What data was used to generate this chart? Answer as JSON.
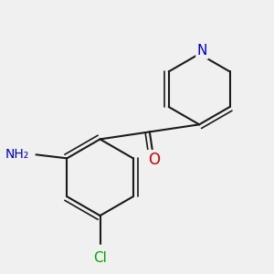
{
  "background_color": "#f0f0f0",
  "bond_color": "#1a1a1a",
  "atom_colors": {
    "N_pyridine": "#0000cc",
    "N_amino": "#0000cc",
    "O": "#cc0000",
    "Cl": "#00aa00",
    "C": "#1a1a1a"
  },
  "font_size_atoms": 11,
  "font_size_labels": 10
}
